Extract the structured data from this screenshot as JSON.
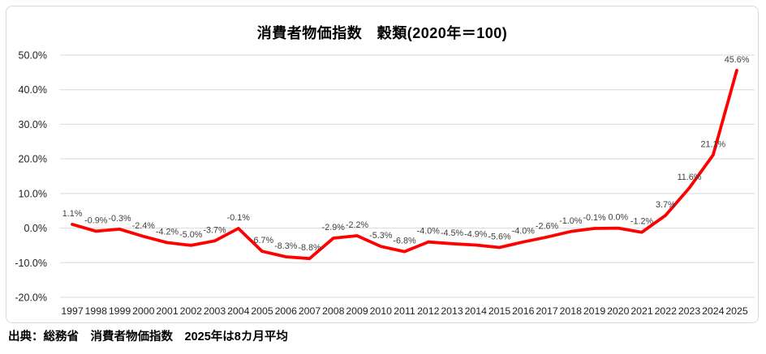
{
  "chart": {
    "title": "消費者物価指数　穀類(2020年＝100)",
    "source_note": "出典：総務省　消費者物価指数　2025年は8カ月平均"
  },
  "colors": {
    "line": "#FF0000",
    "grid": "#D9D9D9",
    "frame_border": "#D9D9D9",
    "data_label": "#404040",
    "axis_label": "#1f1f1f",
    "title": "#000000"
  },
  "chart_data": {
    "type": "line",
    "title": "消費者物価指数　穀類(2020年＝100)",
    "categories": [
      "1997",
      "1998",
      "1999",
      "2000",
      "2001",
      "2002",
      "2003",
      "2004",
      "2005",
      "2006",
      "2007",
      "2008",
      "2009",
      "2010",
      "2011",
      "2012",
      "2013",
      "2014",
      "2015",
      "2016",
      "2017",
      "2018",
      "2019",
      "2020",
      "2021",
      "2022",
      "2023",
      "2024",
      "2025"
    ],
    "values": [
      1.1,
      -0.9,
      -0.3,
      -2.4,
      -4.2,
      -5.0,
      -3.7,
      -0.1,
      -6.7,
      -8.3,
      -8.8,
      -2.9,
      -2.2,
      -5.3,
      -6.8,
      -4.0,
      -4.5,
      -4.9,
      -5.6,
      -4.0,
      -2.6,
      -1.0,
      -0.1,
      0.0,
      -1.2,
      3.7,
      11.6,
      21.1,
      45.6
    ],
    "point_labels": [
      "1.1%",
      "-0.9%",
      "-0.3%",
      "-2.4%",
      "-4.2%",
      "-5.0%",
      "-3.7%",
      "-0.1%",
      "-6.7%",
      "-8.3%",
      "-8.8%",
      "-2.9%",
      "-2.2%",
      "-5.3%",
      "-6.8%",
      "-4.0%",
      "-4.5%",
      "-4.9%",
      "-5.6%",
      "-4.0%",
      "-2.6%",
      "-1.0%",
      "-0.1%",
      "0.0%",
      "-1.2%",
      "3.7%",
      "11.6%",
      "21.1%",
      "45.6%"
    ],
    "xlabel": "",
    "ylabel": "",
    "ylim": [
      -20,
      50
    ],
    "yticks": [
      50,
      40,
      30,
      20,
      10,
      0,
      -10,
      -20
    ],
    "ytick_labels": [
      "50.0%",
      "40.0%",
      "30.0%",
      "20.0%",
      "10.0%",
      "0.0%",
      "-10.0%",
      "-20.0%"
    ],
    "grid": true,
    "legend": "none",
    "series_name": "穀類",
    "series_color": "#FF0000"
  }
}
